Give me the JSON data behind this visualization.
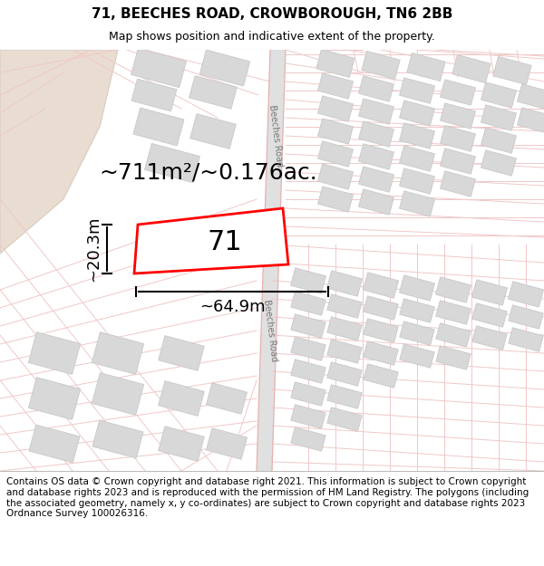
{
  "title_line1": "71, BEECHES ROAD, CROWBOROUGH, TN6 2BB",
  "title_line2": "Map shows position and indicative extent of the property.",
  "footer_text": "Contains OS data © Crown copyright and database right 2021. This information is subject to Crown copyright and database rights 2023 and is reproduced with the permission of HM Land Registry. The polygons (including the associated geometry, namely x, y co-ordinates) are subject to Crown copyright and database rights 2023 Ordnance Survey 100026316.",
  "map_bg": "#f8f6f2",
  "road_fill": "#e8e8e8",
  "road_outline": "#e8b0b0",
  "road_outline_thin": "#f0c8c8",
  "building_fill": "#d8d8d8",
  "building_outline": "#c8c8c8",
  "beige_fill": "#e8ddd0",
  "beige_outline": "#d8cdc0",
  "plot_outline_color": "#ff0000",
  "plot_fill_color": "#ffffff",
  "dim_color": "#000000",
  "area_text": "~711m²/~0.176ac.",
  "width_text": "~64.9m",
  "height_text": "~20.3m",
  "number_text": "71",
  "road_label": "Beeches Road",
  "footer_size": 7.5,
  "title_size": 11,
  "subtitle_size": 9,
  "dim_text_size": 13,
  "area_text_size": 18,
  "number_size": 22
}
